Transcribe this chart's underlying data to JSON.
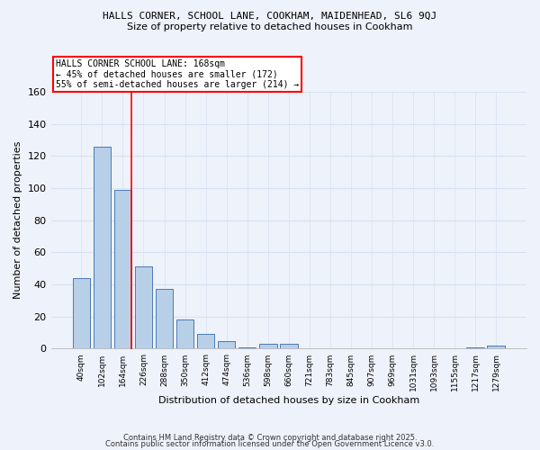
{
  "title1": "HALLS CORNER, SCHOOL LANE, COOKHAM, MAIDENHEAD, SL6 9QJ",
  "title2": "Size of property relative to detached houses in Cookham",
  "xlabel": "Distribution of detached houses by size in Cookham",
  "ylabel": "Number of detached properties",
  "categories": [
    "40sqm",
    "102sqm",
    "164sqm",
    "226sqm",
    "288sqm",
    "350sqm",
    "412sqm",
    "474sqm",
    "536sqm",
    "598sqm",
    "660sqm",
    "721sqm",
    "783sqm",
    "845sqm",
    "907sqm",
    "969sqm",
    "1031sqm",
    "1093sqm",
    "1155sqm",
    "1217sqm",
    "1279sqm"
  ],
  "values": [
    44,
    126,
    99,
    51,
    37,
    18,
    9,
    5,
    1,
    3,
    3,
    0,
    0,
    0,
    0,
    0,
    0,
    0,
    0,
    1,
    2
  ],
  "bar_color": "#b8cfe8",
  "bar_edge_color": "#4a7ab5",
  "red_line_index": 2,
  "annotation_text": "HALLS CORNER SCHOOL LANE: 168sqm\n← 45% of detached houses are smaller (172)\n55% of semi-detached houses are larger (214) →",
  "annotation_box_color": "white",
  "annotation_box_edge": "red",
  "footer1": "Contains HM Land Registry data © Crown copyright and database right 2025.",
  "footer2": "Contains public sector information licensed under the Open Government Licence v3.0.",
  "ylim": [
    0,
    160
  ],
  "bg_color": "#eef2fa",
  "grid_color": "#d8e2f2"
}
